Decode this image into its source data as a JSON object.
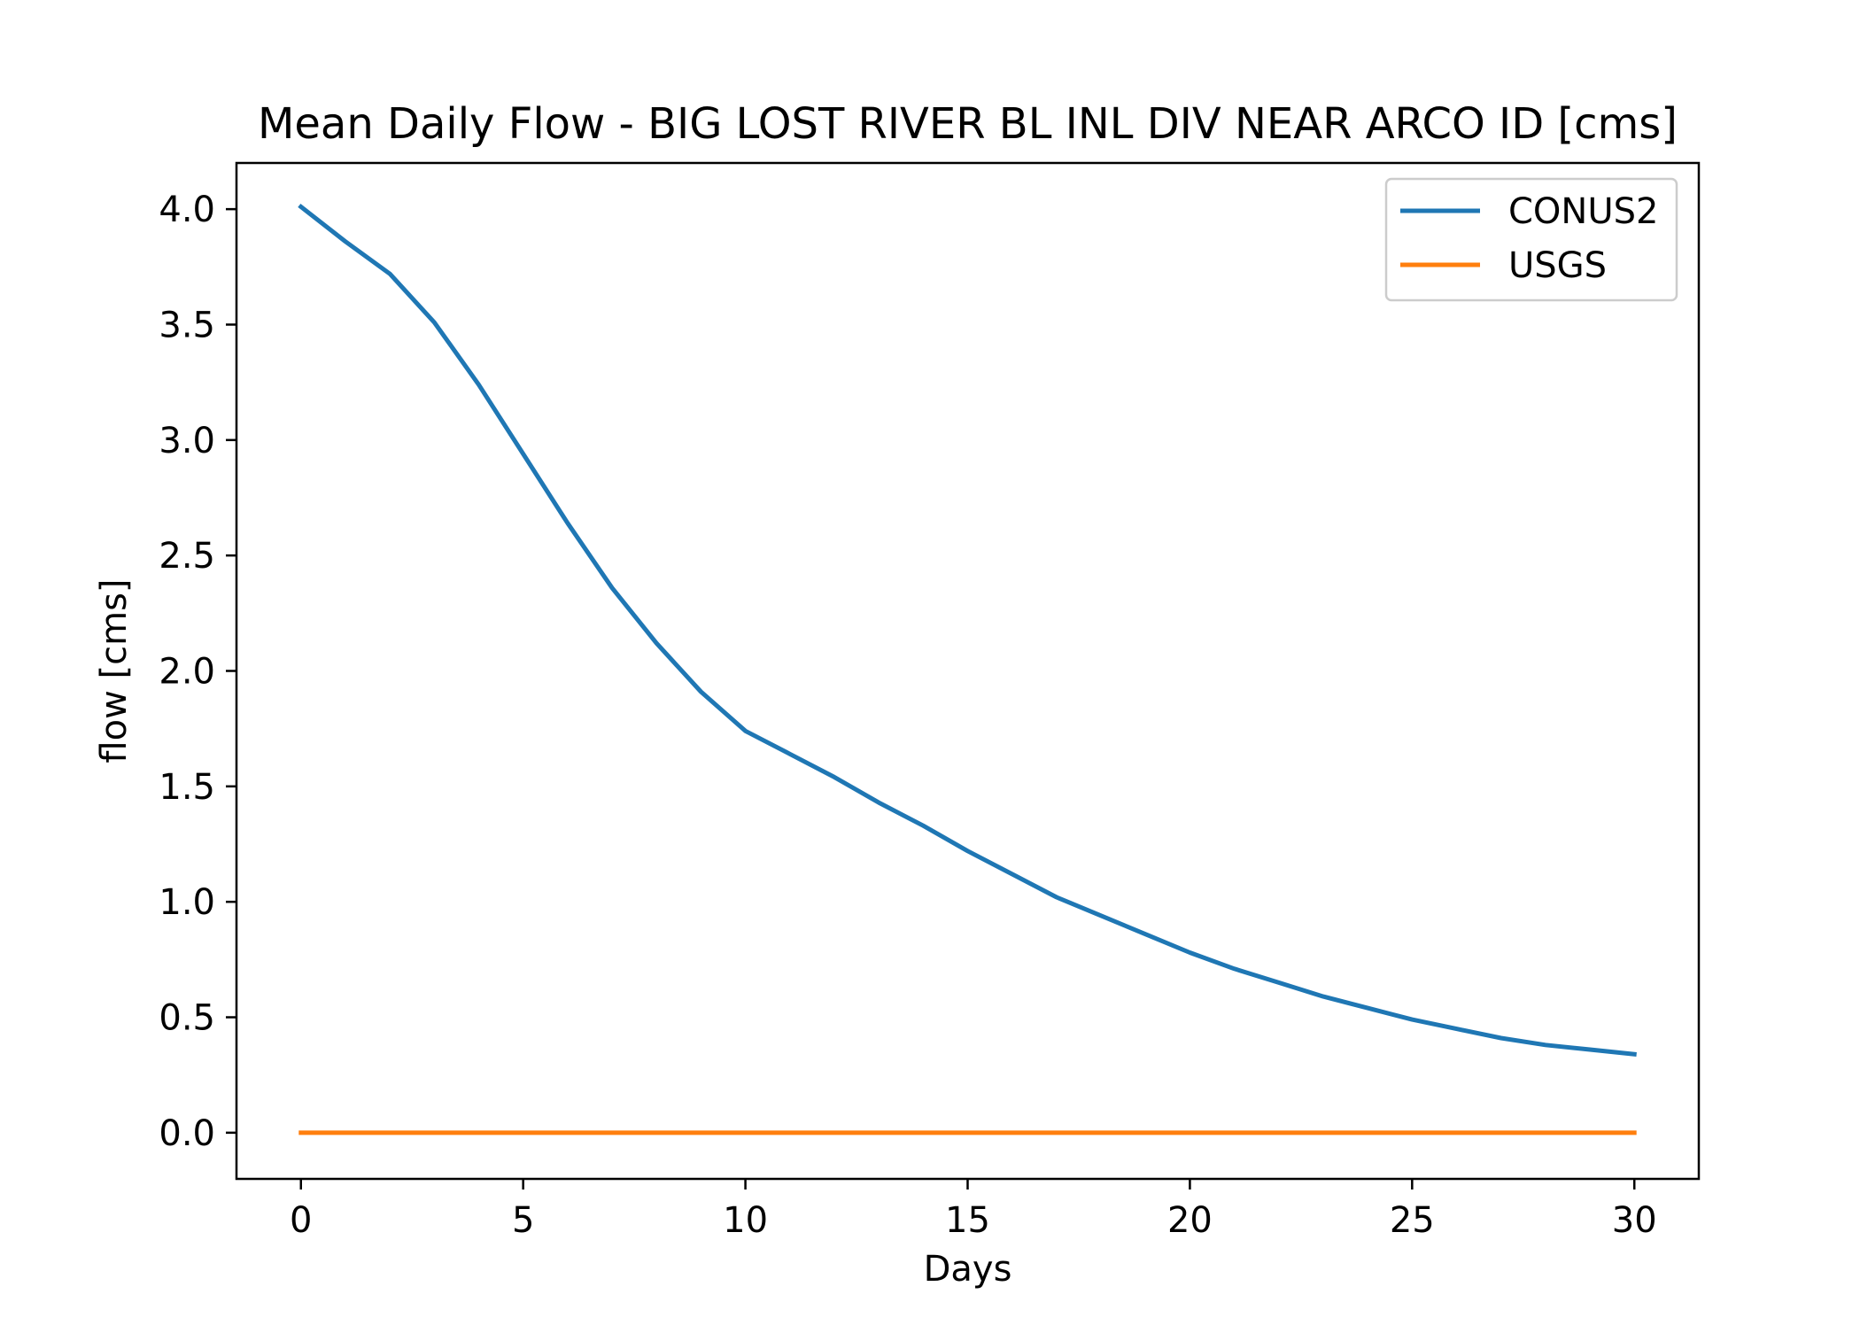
{
  "chart_data": {
    "type": "line",
    "title": "Mean Daily Flow - BIG LOST RIVER BL INL DIV NEAR ARCO ID [cms]",
    "xlabel": "Days",
    "ylabel": "flow [cms]",
    "xlim": [
      -1.45,
      31.45
    ],
    "ylim": [
      -0.2,
      4.2
    ],
    "xticks": [
      0,
      5,
      10,
      15,
      20,
      25,
      30
    ],
    "xtick_labels": [
      "0",
      "5",
      "10",
      "15",
      "20",
      "25",
      "30"
    ],
    "yticks": [
      0.0,
      0.5,
      1.0,
      1.5,
      2.0,
      2.5,
      3.0,
      3.5,
      4.0
    ],
    "ytick_labels": [
      "0.0",
      "0.5",
      "1.0",
      "1.5",
      "2.0",
      "2.5",
      "3.0",
      "3.5",
      "4.0"
    ],
    "grid": false,
    "legend_position": "top-right",
    "x": [
      0,
      1,
      2,
      3,
      4,
      5,
      6,
      7,
      8,
      9,
      10,
      11,
      12,
      13,
      14,
      15,
      16,
      17,
      18,
      19,
      20,
      21,
      22,
      23,
      24,
      25,
      26,
      27,
      28,
      29,
      30
    ],
    "series": [
      {
        "name": "CONUS2",
        "color": "#1f77b4",
        "values": [
          4.01,
          3.86,
          3.72,
          3.51,
          3.24,
          2.94,
          2.64,
          2.36,
          2.12,
          1.91,
          1.74,
          1.64,
          1.54,
          1.43,
          1.33,
          1.22,
          1.12,
          1.02,
          0.94,
          0.86,
          0.78,
          0.71,
          0.65,
          0.59,
          0.54,
          0.49,
          0.45,
          0.41,
          0.38,
          0.36,
          0.34
        ]
      },
      {
        "name": "USGS",
        "color": "#ff7f0e",
        "values": [
          0,
          0,
          0,
          0,
          0,
          0,
          0,
          0,
          0,
          0,
          0,
          0,
          0,
          0,
          0,
          0,
          0,
          0,
          0,
          0,
          0,
          0,
          0,
          0,
          0,
          0,
          0,
          0,
          0,
          0,
          0
        ]
      }
    ]
  }
}
